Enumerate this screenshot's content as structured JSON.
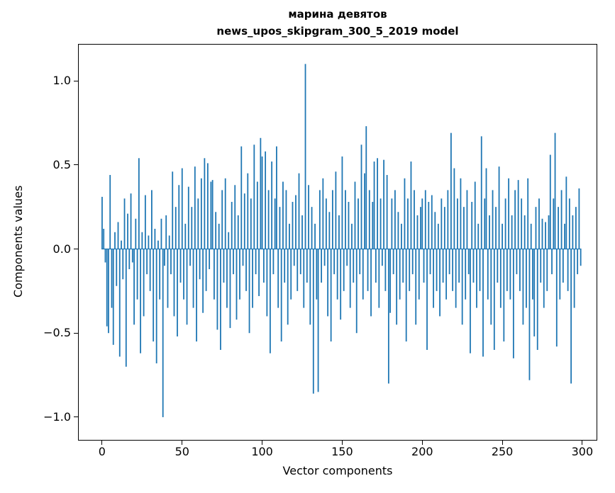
{
  "chart_data": {
    "type": "bar",
    "title": "марина девятов",
    "subtitle": "news_upos_skipgram_300_5_2019 model",
    "xlabel": "Vector components",
    "ylabel": "Components values",
    "bar_color": "#1f77b4",
    "grid": false,
    "legend": "none",
    "xlim": [
      -14.6,
      308.9
    ],
    "ylim": [
      -1.135,
      1.215
    ],
    "xticks": {
      "values": [
        0,
        50,
        100,
        150,
        200,
        250,
        300
      ],
      "labels": [
        "0",
        "50",
        "100",
        "150",
        "200",
        "250",
        "300"
      ]
    },
    "yticks": {
      "values": [
        1.0,
        0.5,
        0.0,
        -0.5,
        -1.0
      ],
      "labels": [
        "1.0",
        "0.5",
        "0.0",
        "−0.5",
        "−1.0"
      ]
    },
    "values": [
      0.31,
      0.12,
      -0.08,
      -0.46,
      -0.5,
      0.44,
      -0.35,
      -0.57,
      0.1,
      -0.22,
      0.16,
      -0.64,
      0.05,
      -0.18,
      0.3,
      -0.7,
      0.21,
      -0.12,
      0.33,
      -0.08,
      -0.45,
      0.18,
      -0.3,
      0.54,
      -0.62,
      0.1,
      -0.4,
      0.32,
      -0.15,
      0.08,
      -0.25,
      0.35,
      -0.55,
      0.12,
      -0.68,
      0.05,
      -0.3,
      0.18,
      -1.0,
      -0.1,
      0.2,
      -0.35,
      0.08,
      -0.15,
      0.46,
      -0.4,
      0.25,
      -0.52,
      0.38,
      -0.2,
      0.48,
      -0.3,
      0.15,
      -0.45,
      0.37,
      -0.1,
      0.25,
      -0.35,
      0.49,
      -0.55,
      0.3,
      -0.18,
      0.42,
      -0.38,
      0.54,
      -0.25,
      0.51,
      -0.12,
      0.4,
      0.41,
      -0.3,
      0.22,
      -0.48,
      0.15,
      -0.6,
      0.35,
      -0.2,
      0.42,
      -0.35,
      0.1,
      -0.47,
      0.28,
      -0.15,
      0.38,
      -0.42,
      0.2,
      -0.3,
      0.61,
      -0.1,
      0.33,
      -0.25,
      0.45,
      -0.5,
      0.3,
      -0.35,
      0.62,
      -0.15,
      0.4,
      -0.28,
      0.66,
      0.55,
      -0.2,
      0.58,
      -0.4,
      0.35,
      -0.62,
      0.52,
      -0.15,
      0.3,
      0.61,
      -0.35,
      0.25,
      -0.55,
      0.4,
      -0.2,
      0.35,
      -0.45,
      0.15,
      -0.3,
      0.28,
      -0.1,
      0.32,
      -0.25,
      0.45,
      -0.15,
      0.2,
      -0.35,
      1.1,
      -0.2,
      0.38,
      -0.45,
      0.25,
      -0.86,
      0.15,
      -0.3,
      -0.85,
      0.35,
      -0.2,
      0.42,
      -0.1,
      0.3,
      -0.4,
      0.22,
      -0.55,
      0.35,
      -0.15,
      0.46,
      -0.3,
      0.2,
      -0.42,
      0.55,
      -0.25,
      0.35,
      -0.1,
      0.28,
      -0.35,
      0.15,
      -0.2,
      0.4,
      -0.5,
      0.3,
      -0.15,
      0.62,
      -0.3,
      0.45,
      0.73,
      -0.25,
      0.35,
      -0.4,
      0.28,
      0.52,
      -0.2,
      0.54,
      -0.35,
      0.3,
      -0.1,
      0.53,
      -0.25,
      0.44,
      -0.8,
      -0.38,
      0.3,
      -0.15,
      0.35,
      -0.45,
      0.22,
      -0.3,
      0.15,
      -0.2,
      0.42,
      -0.55,
      0.3,
      -0.25,
      0.52,
      -0.15,
      0.35,
      -0.45,
      0.2,
      -0.3,
      0.25,
      0.3,
      -0.2,
      0.35,
      -0.6,
      0.28,
      -0.15,
      0.32,
      -0.35,
      0.22,
      -0.25,
      0.15,
      -0.4,
      0.3,
      -0.2,
      0.25,
      -0.3,
      0.35,
      -0.15,
      0.69,
      -0.25,
      0.48,
      -0.35,
      0.3,
      -0.2,
      0.42,
      -0.45,
      0.25,
      -0.3,
      0.35,
      -0.15,
      -0.62,
      0.28,
      -0.2,
      0.4,
      -0.35,
      0.15,
      -0.25,
      0.67,
      -0.64,
      0.3,
      0.48,
      -0.3,
      0.2,
      -0.45,
      0.35,
      -0.6,
      0.25,
      -0.2,
      0.49,
      -0.35,
      0.15,
      -0.55,
      0.3,
      -0.25,
      0.42,
      -0.3,
      0.2,
      -0.65,
      0.35,
      -0.15,
      0.41,
      -0.25,
      0.3,
      -0.45,
      0.2,
      -0.35,
      0.42,
      -0.78,
      0.15,
      -0.3,
      -0.52,
      0.25,
      -0.6,
      0.3,
      -0.2,
      0.18,
      -0.35,
      0.16,
      -0.25,
      0.2,
      0.56,
      -0.15,
      0.3,
      0.69,
      -0.58,
      0.25,
      -0.3,
      0.35,
      -0.2,
      0.15,
      0.43,
      -0.25,
      0.3,
      -0.8,
      0.2,
      -0.35,
      0.25,
      -0.15,
      0.36,
      -0.1
    ]
  }
}
